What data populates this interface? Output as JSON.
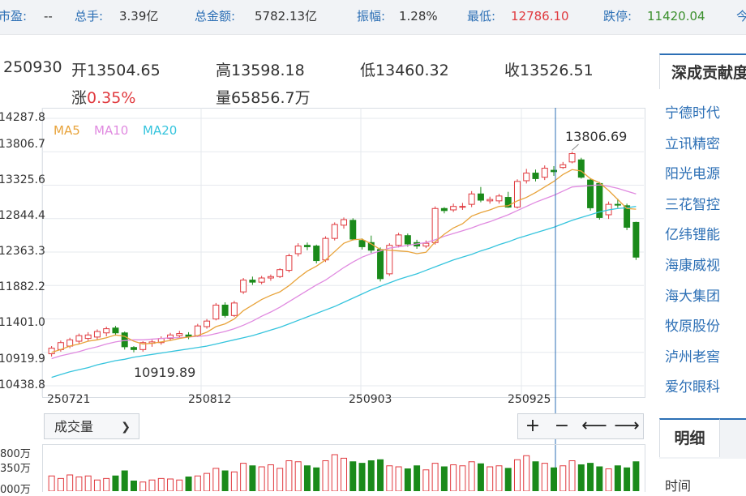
{
  "topbar": {
    "items": [
      {
        "label": "市盈:",
        "value": "--"
      },
      {
        "label": "总手:",
        "value": "3.39亿"
      },
      {
        "label": "总金额:",
        "value": "5782.13亿"
      },
      {
        "label": "振幅:",
        "value": "1.28%"
      },
      {
        "label": "最低:",
        "value": "12786.10"
      },
      {
        "label": "跌停:",
        "value": "11420.04"
      },
      {
        "label": "今",
        "value": ""
      }
    ]
  },
  "quote": {
    "date": "250930",
    "open_label": "开",
    "open": "13504.65",
    "high_label": "高",
    "high": "13598.18",
    "low_label": "低",
    "low": "13460.32",
    "close_label": "收",
    "close": "13526.51",
    "change_label": "涨",
    "change": "0.35%",
    "volume_label": "量",
    "volume": "65856.7万"
  },
  "legend": {
    "ma5": "MA5",
    "ma10": "MA10",
    "ma20": "MA20"
  },
  "colors": {
    "up": "#e0393e",
    "down": "#1a8a1a",
    "ma5": "#e8a33a",
    "ma10": "#e08ae0",
    "ma20": "#35c4dd",
    "crosshair": "#2c6fb5",
    "accent": "#2c6fb5"
  },
  "chart_data": {
    "type": "candlestick",
    "y_ticks": [
      "14287.8",
      "13806.7",
      "13325.6",
      "12844.4",
      "12363.3",
      "11882.2",
      "11401.0",
      "10919.9",
      "10438.8"
    ],
    "y_range": [
      10438.8,
      14287.8
    ],
    "x_ticks": [
      "250721",
      "250812",
      "250903",
      "250925"
    ],
    "high_annotation": "13806.69",
    "low_annotation": "10919.89",
    "candles": [
      [
        10900,
        10980,
        10860,
        11010
      ],
      [
        10960,
        11060,
        10930,
        11090
      ],
      [
        11010,
        11100,
        10980,
        11130
      ],
      [
        11080,
        11160,
        11040,
        11190
      ],
      [
        11120,
        11170,
        11080,
        11210
      ],
      [
        11140,
        11220,
        11100,
        11250
      ],
      [
        11200,
        11260,
        11150,
        11290
      ],
      [
        11270,
        11200,
        11160,
        11300
      ],
      [
        11200,
        11000,
        10960,
        11220
      ],
      [
        10990,
        10960,
        10920,
        11010
      ],
      [
        10960,
        11060,
        10930,
        11080
      ],
      [
        11050,
        11070,
        11000,
        11100
      ],
      [
        11060,
        11120,
        11030,
        11150
      ],
      [
        11120,
        11170,
        11090,
        11200
      ],
      [
        11160,
        11190,
        11120,
        11230
      ],
      [
        11170,
        11150,
        11110,
        11210
      ],
      [
        11160,
        11300,
        11140,
        11330
      ],
      [
        11290,
        11370,
        11260,
        11400
      ],
      [
        11400,
        11600,
        11380,
        11630
      ],
      [
        11600,
        11450,
        11420,
        11640
      ],
      [
        11450,
        11630,
        11430,
        11660
      ],
      [
        11790,
        11960,
        11760,
        11990
      ],
      [
        11960,
        11930,
        11890,
        12010
      ],
      [
        11930,
        11990,
        11900,
        12020
      ],
      [
        11990,
        12010,
        11950,
        12040
      ],
      [
        12010,
        12110,
        11990,
        12130
      ],
      [
        12100,
        12310,
        12070,
        12340
      ],
      [
        12340,
        12450,
        12300,
        12490
      ],
      [
        12460,
        12440,
        12390,
        12500
      ],
      [
        12450,
        12240,
        12200,
        12470
      ],
      [
        12250,
        12560,
        12220,
        12590
      ],
      [
        12560,
        12760,
        12530,
        12790
      ],
      [
        12750,
        12830,
        12700,
        12860
      ],
      [
        12820,
        12550,
        12530,
        12850
      ],
      [
        12530,
        12440,
        12400,
        12560
      ],
      [
        12500,
        12390,
        12350,
        12600
      ],
      [
        12400,
        11980,
        11940,
        12430
      ],
      [
        12050,
        12460,
        12020,
        12490
      ],
      [
        12460,
        12610,
        12430,
        12640
      ],
      [
        12600,
        12480,
        12440,
        12630
      ],
      [
        12500,
        12450,
        12410,
        12540
      ],
      [
        12450,
        12490,
        12420,
        12530
      ],
      [
        12500,
        12990,
        12470,
        13020
      ],
      [
        12990,
        12960,
        12920,
        13010
      ],
      [
        12970,
        13020,
        12940,
        13060
      ],
      [
        13010,
        13020,
        12970,
        13070
      ],
      [
        13050,
        13200,
        13010,
        13240
      ],
      [
        13200,
        13110,
        13080,
        13300
      ],
      [
        13100,
        13120,
        13060,
        13160
      ],
      [
        13100,
        13170,
        13060,
        13200
      ],
      [
        13150,
        13010,
        13000,
        13230
      ],
      [
        13010,
        13380,
        12990,
        13410
      ],
      [
        13390,
        13500,
        13350,
        13560
      ],
      [
        13500,
        13420,
        13380,
        13550
      ],
      [
        13440,
        13570,
        13400,
        13610
      ],
      [
        13540,
        13520,
        13460,
        13600
      ],
      [
        13580,
        13620,
        13560,
        13660
      ],
      [
        13660,
        13780,
        13640,
        13806.69
      ],
      [
        13690,
        13440,
        13420,
        13720
      ],
      [
        13400,
        13000,
        12960,
        13430
      ],
      [
        13350,
        12860,
        12830,
        13370
      ],
      [
        12900,
        13050,
        12840,
        13090
      ],
      [
        13050,
        13040,
        13000,
        13130
      ],
      [
        13030,
        12720,
        12680,
        13060
      ],
      [
        12790,
        12290,
        12250,
        12800
      ]
    ],
    "ma5": [
      10920,
      10960,
      11010,
      11040,
      11080,
      11100,
      11130,
      11170,
      11150,
      11080,
      11040,
      11050,
      11070,
      11090,
      11120,
      11140,
      11160,
      11210,
      11290,
      11330,
      11400,
      11520,
      11600,
      11680,
      11740,
      11790,
      11880,
      11990,
      12090,
      12160,
      12250,
      12370,
      12490,
      12540,
      12550,
      12480,
      12400,
      12390,
      12380,
      12370,
      12340,
      12360,
      12510,
      12620,
      12710,
      12770,
      12880,
      12930,
      12970,
      13020,
      13030,
      13100,
      13150,
      13220,
      13300,
      13380,
      13480,
      13550,
      13530,
      13420,
      13360,
      13250,
      13120,
      12990,
      12980
    ],
    "ma10": [
      10830,
      10870,
      10900,
      10930,
      10970,
      11000,
      11040,
      11070,
      11090,
      11100,
      11100,
      11110,
      11120,
      11130,
      11130,
      11140,
      11150,
      11160,
      11190,
      11220,
      11260,
      11310,
      11370,
      11440,
      11500,
      11570,
      11650,
      11730,
      11810,
      11890,
      11960,
      12050,
      12140,
      12220,
      12290,
      12340,
      12380,
      12420,
      12440,
      12460,
      12480,
      12500,
      12540,
      12590,
      12630,
      12670,
      12710,
      12760,
      12800,
      12850,
      12900,
      12960,
      13020,
      13080,
      13130,
      13180,
      13240,
      13300,
      13310,
      13320,
      13330,
      13310,
      13280,
      13240,
      13200
    ],
    "ma20": [
      10560,
      10600,
      10640,
      10670,
      10700,
      10740,
      10770,
      10800,
      10820,
      10850,
      10870,
      10890,
      10910,
      10930,
      10950,
      10970,
      10990,
      11010,
      11040,
      11070,
      11100,
      11130,
      11160,
      11200,
      11240,
      11280,
      11330,
      11380,
      11430,
      11480,
      11530,
      11580,
      11640,
      11700,
      11760,
      11820,
      11870,
      11920,
      11970,
      12010,
      12050,
      12100,
      12150,
      12200,
      12250,
      12290,
      12330,
      12380,
      12420,
      12470,
      12510,
      12560,
      12600,
      12640,
      12680,
      12720,
      12770,
      12820,
      12860,
      12900,
      12940,
      12970,
      12990,
      13000,
      13020
    ],
    "volume_ticks": [
      "800万",
      "350万",
      "000万"
    ],
    "volumes": [
      30,
      25,
      32,
      28,
      30,
      22,
      25,
      30,
      40,
      20,
      18,
      22,
      25,
      24,
      22,
      28,
      30,
      35,
      45,
      40,
      38,
      55,
      50,
      48,
      52,
      45,
      60,
      58,
      50,
      46,
      60,
      72,
      65,
      58,
      55,
      60,
      62,
      50,
      48,
      44,
      50,
      42,
      55,
      48,
      52,
      50,
      58,
      54,
      48,
      50,
      45,
      62,
      70,
      58,
      55,
      46,
      50,
      60,
      52,
      55,
      48,
      44,
      50,
      46,
      58
    ]
  },
  "controls": {
    "indicator": "成交量",
    "zoom_in": "+",
    "zoom_out": "−",
    "pan_left": "⟵",
    "pan_right": "⟶"
  },
  "right_panel": {
    "title": "深成贡献度",
    "items": [
      "宁德时代",
      "立讯精密",
      "阳光电源",
      "三花智控",
      "亿纬锂能",
      "海康威视",
      "海大集团",
      "牧原股份",
      "泸州老窖",
      "爱尔眼科"
    ],
    "tab": "明细",
    "time_label": "时间"
  }
}
